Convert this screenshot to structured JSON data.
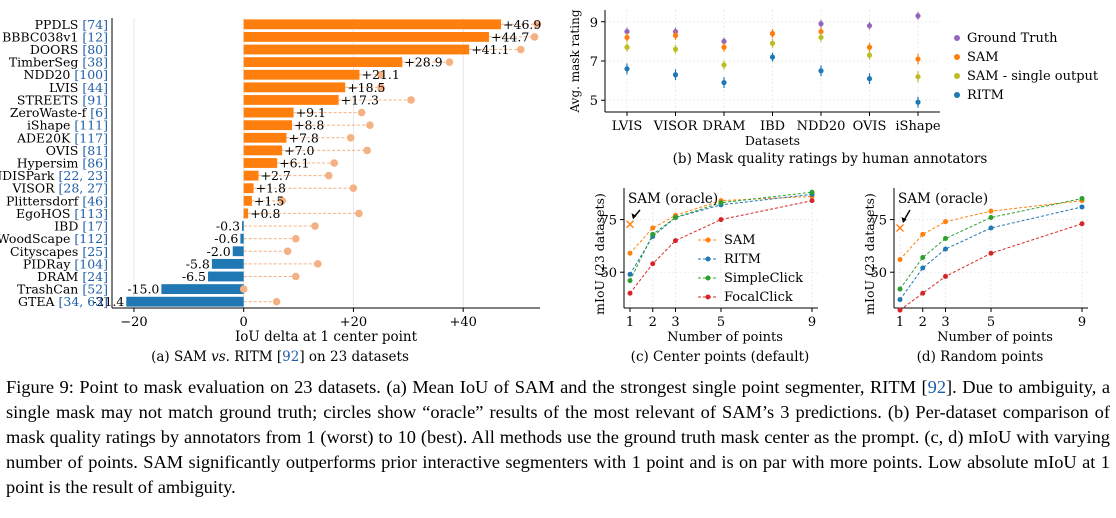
{
  "caption": {
    "figure_label": "Figure 9:",
    "text_1": " Point to mask evaluation on 23 datasets. (a) Mean IoU of SAM and the strongest single point segmenter, RITM [",
    "cite": "92",
    "text_2": "]. Due to ambiguity, a single mask may not match ground truth; circles show “oracle” results of the most relevant of SAM’s 3 predictions. (b) Per-dataset comparison of mask quality ratings by annotators from 1 (worst) to 10 (best). All methods use the ground truth mask center as the prompt. (c, d) mIoU with varying number of points. SAM significantly outperforms prior interactive segmenters with 1 point and is on par with more points. Low absolute mIoU at 1 point is the result of ambiguity."
  },
  "colors": {
    "orange": "#ff7f0e",
    "blue": "#1f77b4",
    "green": "#2ca02c",
    "red": "#d62728",
    "oracle": "#f4b183",
    "purple": "#9467bd",
    "olive": "#bcbd22",
    "cite": "#1f5fa8"
  },
  "chart_data": [
    {
      "panel": "a",
      "type": "bar",
      "orientation": "horizontal",
      "subcaption": "(a) SAM vs. RITM [92] on 23 datasets",
      "xlabel": "IoU delta at 1 center point",
      "xticks": [
        "−20",
        "0",
        "+20",
        "+40"
      ],
      "tick_values": [
        -20,
        0,
        20,
        40
      ],
      "xlim": [
        -24,
        54
      ],
      "categories": [
        {
          "name": "PPDLS",
          "refs": "[74]"
        },
        {
          "name": "BBBC038v1",
          "refs": "[12]"
        },
        {
          "name": "DOORS",
          "refs": "[80]"
        },
        {
          "name": "TimberSeg",
          "refs": "[38]"
        },
        {
          "name": "NDD20",
          "refs": "[100]"
        },
        {
          "name": "LVIS",
          "refs": "[44]"
        },
        {
          "name": "STREETS",
          "refs": "[91]"
        },
        {
          "name": "ZeroWaste-f",
          "refs": "[6]"
        },
        {
          "name": "iShape",
          "refs": "[111]"
        },
        {
          "name": "ADE20K",
          "refs": "[117]"
        },
        {
          "name": "OVIS",
          "refs": "[81]"
        },
        {
          "name": "Hypersim",
          "refs": "[86]"
        },
        {
          "name": "NDISPark",
          "refs": "[22, 23]"
        },
        {
          "name": "VISOR",
          "refs": "[28, 27]"
        },
        {
          "name": "Plittersdorf",
          "refs": "[46]"
        },
        {
          "name": "EgoHOS",
          "refs": "[113]"
        },
        {
          "name": "IBD",
          "refs": "[17]"
        },
        {
          "name": "WoodScape",
          "refs": "[112]"
        },
        {
          "name": "Cityscapes",
          "refs": "[25]"
        },
        {
          "name": "PIDRay",
          "refs": "[104]"
        },
        {
          "name": "DRAM",
          "refs": "[24]"
        },
        {
          "name": "TrashCan",
          "refs": "[52]"
        },
        {
          "name": "GTEA",
          "refs": "[34, 63]"
        }
      ],
      "values": [
        46.9,
        44.7,
        41.1,
        28.9,
        21.1,
        18.5,
        17.3,
        9.1,
        8.8,
        7.8,
        7.0,
        6.1,
        2.7,
        1.8,
        1.5,
        0.8,
        -0.3,
        -0.6,
        -2.0,
        -5.8,
        -6.5,
        -15.0,
        -21.4
      ],
      "labels": [
        "+46.9",
        "+44.7",
        "+41.1",
        "+28.9",
        "+21.1",
        "+18.5",
        "+17.3",
        "+9.1",
        "+8.8",
        "+7.8",
        "+7.0",
        "+6.1",
        "+2.7",
        "+1.8",
        "+1.5",
        "+0.8",
        "-0.3",
        "-0.6",
        "-2.0",
        "-5.8",
        "-6.5",
        "-15.0",
        "-21.4"
      ],
      "oracle_values": [
        53.5,
        53.0,
        50.5,
        37.5,
        25.0,
        25.0,
        30.5,
        21.5,
        23.0,
        19.5,
        22.5,
        16.5,
        15.5,
        20.0,
        7.0,
        21.0,
        13.0,
        9.5,
        8.0,
        13.5,
        9.5,
        0.0,
        6.0
      ]
    },
    {
      "panel": "b",
      "type": "scatter",
      "subcaption": "(b) Mask quality ratings by human annotators",
      "xlabel": "Datasets",
      "ylabel": "Avg. mask rating",
      "categories": [
        "LVIS",
        "VISOR",
        "DRAM",
        "IBD",
        "NDD20",
        "OVIS",
        "iShape"
      ],
      "yticks": [
        "5",
        "7",
        "9"
      ],
      "ylim": [
        4.4,
        9.6
      ],
      "legend_position": "right",
      "series": [
        {
          "name": "Ground Truth",
          "color": "#9467bd",
          "values": [
            8.5,
            8.5,
            8.0,
            8.4,
            8.9,
            8.8,
            9.3
          ],
          "err": [
            0.12,
            0.12,
            0.12,
            0.12,
            0.12,
            0.12,
            0.12
          ]
        },
        {
          "name": "SAM",
          "color": "#ff7f0e",
          "values": [
            8.2,
            8.3,
            7.7,
            8.4,
            8.5,
            7.7,
            7.1
          ],
          "err": [
            0.15,
            0.15,
            0.15,
            0.15,
            0.15,
            0.15,
            0.2
          ]
        },
        {
          "name": "SAM - single output",
          "color": "#bcbd22",
          "values": [
            7.7,
            7.6,
            6.8,
            7.9,
            8.2,
            7.3,
            6.2
          ],
          "err": [
            0.15,
            0.15,
            0.15,
            0.15,
            0.15,
            0.15,
            0.2
          ]
        },
        {
          "name": "RITM",
          "color": "#1f77b4",
          "values": [
            6.6,
            6.3,
            5.9,
            7.2,
            6.5,
            6.1,
            4.9
          ],
          "err": [
            0.2,
            0.2,
            0.2,
            0.15,
            0.2,
            0.2,
            0.2
          ]
        }
      ]
    },
    {
      "panel": "c",
      "type": "line",
      "subcaption": "(c) Center points (default)",
      "xlabel": "Number of points",
      "ylabel": "mIoU (23 datasets)",
      "x": [
        1,
        2,
        3,
        5,
        9
      ],
      "xticks": [
        "1",
        "2",
        "3",
        "5",
        "9"
      ],
      "yticks": [
        "50",
        "75"
      ],
      "ylim": [
        33,
        90
      ],
      "annotation": "SAM (oracle)",
      "oracle_value": 72.8,
      "legend_position": "center-right",
      "series": [
        {
          "name": "SAM",
          "color": "#ff7f0e",
          "values": [
            59,
            71,
            77,
            84,
            86
          ]
        },
        {
          "name": "RITM",
          "color": "#1f77b4",
          "values": [
            49,
            67,
            76,
            82,
            87
          ]
        },
        {
          "name": "SimpleClick",
          "color": "#2ca02c",
          "values": [
            46,
            68,
            76,
            83,
            88
          ]
        },
        {
          "name": "FocalClick",
          "color": "#d62728",
          "values": [
            40,
            54,
            65,
            75,
            84
          ]
        }
      ]
    },
    {
      "panel": "d",
      "type": "line",
      "subcaption": "(d) Random points",
      "xlabel": "Number of points",
      "ylabel": "mIoU (23 datasets)",
      "x": [
        1,
        2,
        3,
        5,
        9
      ],
      "xticks": [
        "1",
        "2",
        "3",
        "5",
        "9"
      ],
      "yticks": [
        "50",
        "75"
      ],
      "ylim": [
        33,
        90
      ],
      "annotation": "SAM (oracle)",
      "oracle_value": 71,
      "series": [
        {
          "name": "SAM",
          "color": "#ff7f0e",
          "values": [
            56,
            68,
            74,
            79,
            84
          ]
        },
        {
          "name": "RITM",
          "color": "#1f77b4",
          "values": [
            37,
            52,
            61,
            71,
            81
          ]
        },
        {
          "name": "SimpleClick",
          "color": "#2ca02c",
          "values": [
            42,
            57,
            66,
            76,
            85
          ]
        },
        {
          "name": "FocalClick",
          "color": "#d62728",
          "values": [
            32,
            40,
            48,
            59,
            73
          ]
        }
      ]
    }
  ]
}
